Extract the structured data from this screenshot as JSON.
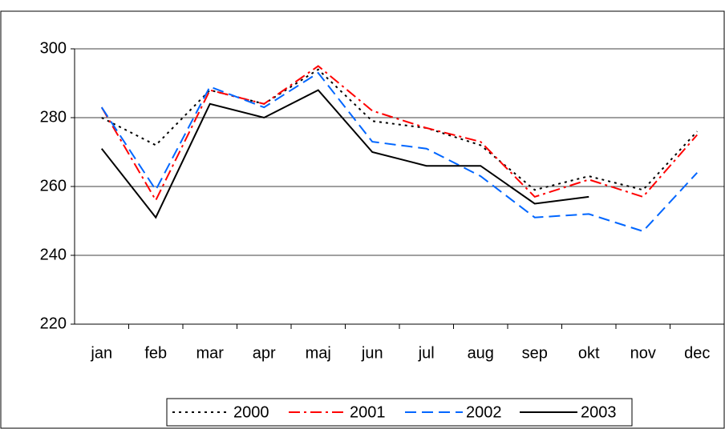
{
  "chart_data": {
    "type": "line",
    "categories": [
      "jan",
      "feb",
      "mar",
      "apr",
      "maj",
      "jun",
      "jul",
      "aug",
      "sep",
      "okt",
      "nov",
      "dec"
    ],
    "series": [
      {
        "name": "2000",
        "color": "#000000",
        "dash": "3,5",
        "values": [
          280,
          272,
          288,
          284,
          294,
          279,
          277,
          272,
          259,
          263,
          259,
          276
        ]
      },
      {
        "name": "2001",
        "color": "#ff0000",
        "dash": "14,5,3,5",
        "values": [
          283,
          256,
          288,
          284,
          295,
          282,
          277,
          273,
          257,
          262,
          257,
          275
        ]
      },
      {
        "name": "2002",
        "color": "#0066ff",
        "dash": "14,7",
        "values": [
          283,
          259,
          289,
          283,
          293,
          273,
          271,
          263,
          251,
          252,
          247,
          264
        ]
      },
      {
        "name": "2003",
        "color": "#000000",
        "dash": "",
        "values": [
          271,
          251,
          284,
          280,
          288,
          270,
          266,
          266,
          255,
          257,
          null,
          null
        ]
      }
    ],
    "ylim": [
      220,
      300
    ],
    "yticks": [
      220,
      240,
      260,
      280,
      300
    ],
    "grid": true
  }
}
